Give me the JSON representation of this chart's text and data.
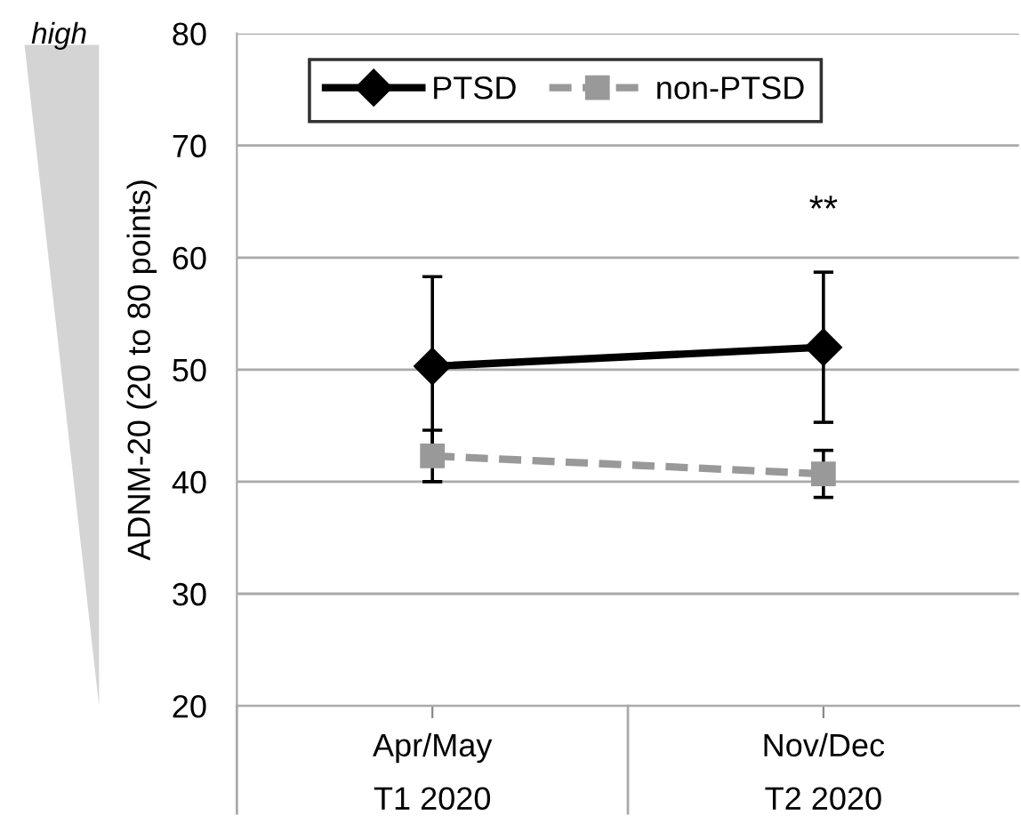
{
  "chart_data": {
    "type": "line",
    "ylabel": "ADNM-20 (20 to 80 points)",
    "categories": [
      "Apr/May\nT1 2020",
      "Nov/Dec\nT2 2020"
    ],
    "series": [
      {
        "name": "PTSD",
        "color": "#000000",
        "values": [
          50.3,
          52.0
        ],
        "errors": [
          8.0,
          6.7
        ],
        "marker": "diamond",
        "line_style": "solid"
      },
      {
        "name": "non-PTSD",
        "color": "#999999",
        "values": [
          42.3,
          40.7
        ],
        "errors": [
          2.3,
          2.1
        ],
        "marker": "square",
        "line_style": "dashed"
      }
    ],
    "ylim": [
      20,
      80
    ],
    "yticks": [
      20,
      30,
      40,
      50,
      60,
      70,
      80
    ],
    "grid": "y",
    "legend": "top",
    "annotations": [
      "**",
      "high"
    ]
  }
}
